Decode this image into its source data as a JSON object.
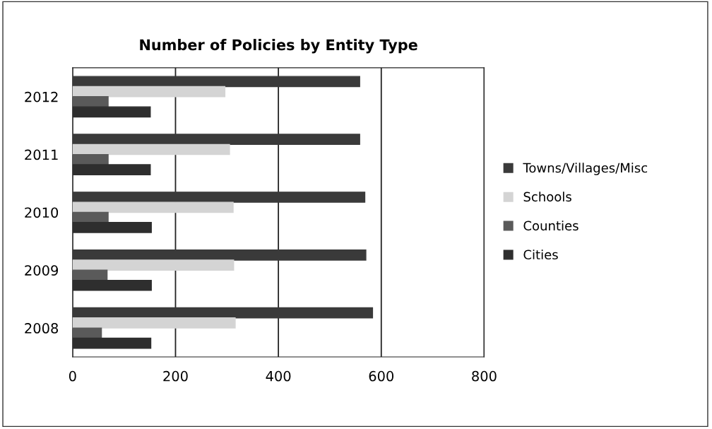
{
  "chart_data": {
    "type": "bar",
    "orientation": "horizontal",
    "title": "Number of Policies by Entity Type",
    "categories": [
      "2012",
      "2011",
      "2010",
      "2009",
      "2008"
    ],
    "series": [
      {
        "name": "Towns/Villages/Misc",
        "color": "#3a3a3a",
        "values": [
          558,
          558,
          568,
          570,
          583
        ]
      },
      {
        "name": "Schools",
        "color": "#d4d4d4",
        "values": [
          296,
          305,
          312,
          313,
          316
        ]
      },
      {
        "name": "Counties",
        "color": "#5a5a5a",
        "values": [
          69,
          69,
          69,
          67,
          56
        ]
      },
      {
        "name": "Cities",
        "color": "#2e2e2e",
        "values": [
          151,
          151,
          153,
          153,
          152
        ]
      }
    ],
    "xlim": [
      0,
      800
    ],
    "xticks": [
      0,
      200,
      400,
      600,
      800
    ],
    "grid": "x",
    "legend": "right"
  }
}
